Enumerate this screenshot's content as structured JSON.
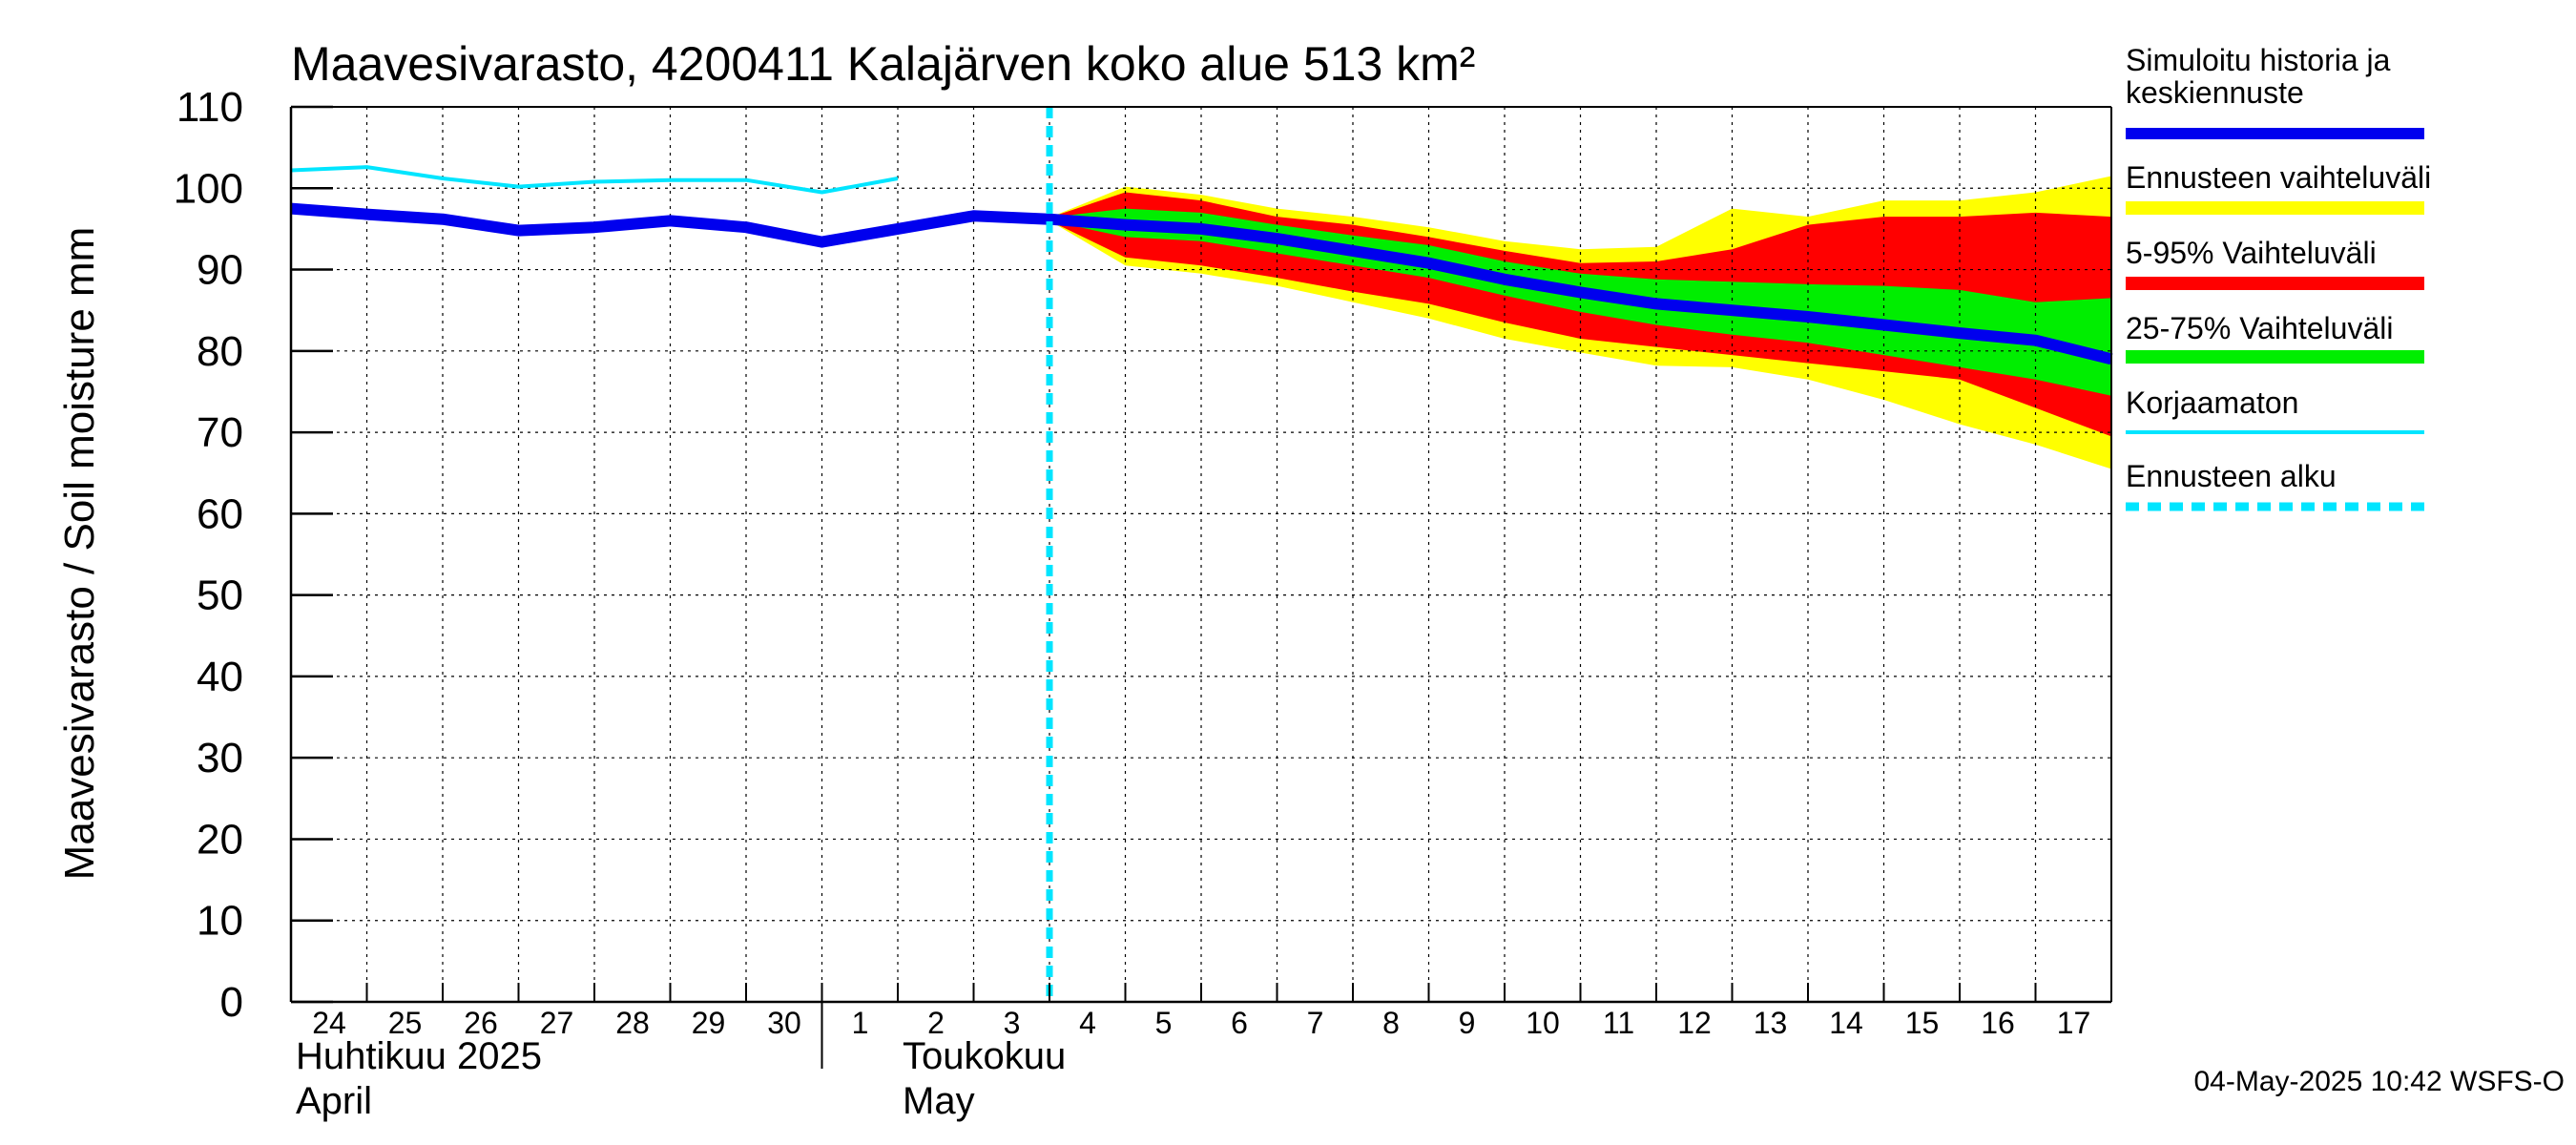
{
  "chart_data": {
    "type": "line",
    "title": "Maavesivarasto, 4200411 Kalajärven koko alue 513 km²",
    "ylabel": "Maavesivarasto / Soil moisture   mm",
    "ylim": [
      0,
      110
    ],
    "yticks": [
      0,
      10,
      20,
      30,
      40,
      50,
      60,
      70,
      80,
      90,
      100,
      110
    ],
    "xticks": [
      "24",
      "25",
      "26",
      "27",
      "28",
      "29",
      "30",
      "1",
      "2",
      "3",
      "4",
      "5",
      "6",
      "7",
      "8",
      "9",
      "10",
      "11",
      "12",
      "13",
      "14",
      "15",
      "16",
      "17"
    ],
    "x_range_days": [
      0,
      24
    ],
    "month_labels": [
      {
        "line1": "Huhtikuu  2025",
        "line2": "April",
        "at_day": 0
      },
      {
        "line1": "Toukokuu",
        "line2": "May",
        "at_day": 8
      }
    ],
    "month_separator_day": 7,
    "forecast_start_day": 10,
    "series": [
      {
        "name": "Korjaamaton",
        "color": "#00e5ff",
        "x": [
          0,
          1,
          2,
          3,
          4,
          5,
          6,
          7,
          8
        ],
        "values": [
          102.2,
          102.6,
          101.2,
          100.2,
          100.8,
          101.0,
          101.0,
          99.5,
          101.2
        ]
      },
      {
        "name": "Simuloitu historia ja keskiennuste",
        "color": "#0000ee",
        "x": [
          0,
          1,
          2,
          3,
          4,
          5,
          6,
          7,
          8,
          9,
          10,
          11,
          12,
          13,
          14,
          15,
          16,
          17,
          18,
          19,
          20,
          21,
          22,
          23,
          24
        ],
        "values": [
          97.5,
          96.8,
          96.2,
          94.8,
          95.2,
          96.0,
          95.2,
          93.4,
          95.0,
          96.6,
          96.2,
          95.5,
          95.0,
          93.8,
          92.3,
          90.8,
          88.8,
          87.2,
          85.8,
          85.0,
          84.2,
          83.2,
          82.2,
          81.3,
          79.0
        ]
      }
    ],
    "bands": [
      {
        "name": "Ennusteen vaihteluväli",
        "color": "#ffff00",
        "x": [
          10,
          11,
          12,
          13,
          14,
          15,
          16,
          17,
          18,
          19,
          20,
          21,
          22,
          23,
          24
        ],
        "upper": [
          96.4,
          100.2,
          99.2,
          97.5,
          96.5,
          95.2,
          93.5,
          92.5,
          92.8,
          97.5,
          96.5,
          98.5,
          98.5,
          99.5,
          101.5
        ],
        "lower": [
          96.0,
          90.5,
          89.5,
          88.0,
          86.0,
          84.0,
          81.5,
          79.8,
          78.2,
          78.0,
          76.5,
          74.0,
          71.0,
          68.5,
          65.5
        ]
      },
      {
        "name": "5-95% Vaihteluväli",
        "color": "#ff0000",
        "x": [
          10,
          11,
          12,
          13,
          14,
          15,
          16,
          17,
          18,
          19,
          20,
          21,
          22,
          23,
          24
        ],
        "upper": [
          96.4,
          99.5,
          98.5,
          96.5,
          95.5,
          94.0,
          92.3,
          90.8,
          91.0,
          92.5,
          95.5,
          96.5,
          96.5,
          97.0,
          96.5
        ],
        "lower": [
          96.0,
          91.5,
          90.5,
          89.0,
          87.3,
          85.8,
          83.5,
          81.5,
          80.5,
          79.5,
          78.5,
          77.5,
          76.5,
          73.0,
          69.5
        ]
      },
      {
        "name": "25-75% Vaihteluväli",
        "color": "#00ee00",
        "x": [
          10,
          11,
          12,
          13,
          14,
          15,
          16,
          17,
          18,
          19,
          20,
          21,
          22,
          23,
          24
        ],
        "upper": [
          96.4,
          97.5,
          97.0,
          95.5,
          94.2,
          93.0,
          91.0,
          89.5,
          88.8,
          88.5,
          88.2,
          88.0,
          87.5,
          86.0,
          86.5
        ],
        "lower": [
          96.0,
          94.0,
          93.5,
          92.0,
          90.5,
          89.0,
          86.8,
          84.8,
          83.2,
          82.0,
          81.0,
          79.5,
          78.0,
          76.5,
          74.5
        ]
      }
    ],
    "legend": [
      {
        "label": "Simuloitu historia ja keskiennuste",
        "color": "#0000ee",
        "style": "thick"
      },
      {
        "label": "Ennusteen vaihteluväli",
        "color": "#ffff00",
        "style": "band"
      },
      {
        "label": "5-95% Vaihteluväli",
        "color": "#ff0000",
        "style": "band"
      },
      {
        "label": "25-75% Vaihteluväli",
        "color": "#00ee00",
        "style": "band"
      },
      {
        "label": "Korjaamaton",
        "color": "#00e5ff",
        "style": "thin"
      },
      {
        "label": "Ennusteen alku",
        "color": "#00e5ff",
        "style": "dashed"
      }
    ],
    "footer": "04-May-2025 10:42 WSFS-O"
  }
}
